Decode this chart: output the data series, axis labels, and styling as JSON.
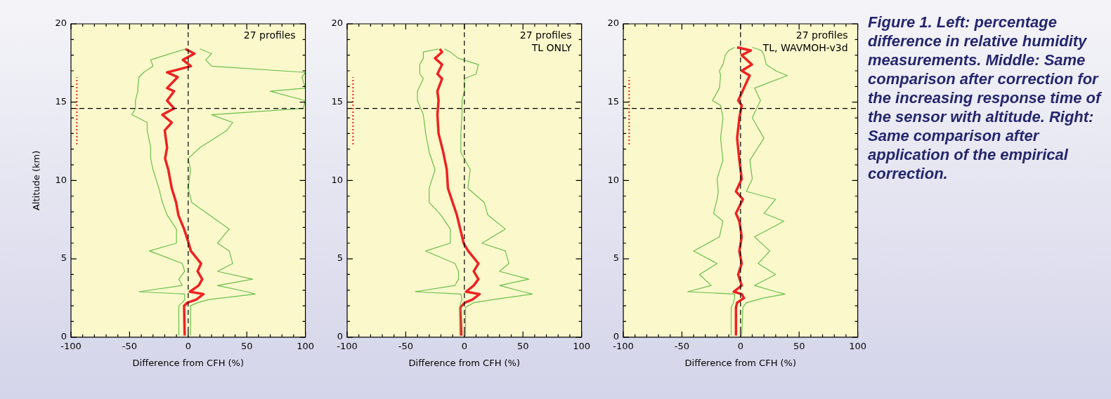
{
  "chart_data": [
    {
      "type": "line",
      "xlabel": "Difference from CFH (%)",
      "ylabel": "Altitude (km)",
      "xlim": [
        -100,
        100
      ],
      "xticks": [
        -100,
        -50,
        0,
        50,
        100
      ],
      "ylim": [
        0,
        20
      ],
      "yticks": [
        0,
        5,
        10,
        15,
        20
      ],
      "grid": false,
      "legend": false,
      "marker": "none",
      "annotations": [
        "27 profiles"
      ],
      "ref_lines": [
        {
          "axis": "x",
          "value": 0,
          "line_style": "dashed",
          "color": "#000000"
        },
        {
          "axis": "y",
          "value": 14.6,
          "line_style": "dashed",
          "color": "#000000"
        }
      ],
      "series": [
        {
          "color": "#6abf4b",
          "x": [
            -8,
            -8,
            -5,
            -3,
            -3,
            -42,
            -5,
            -8,
            -3,
            -5,
            -33,
            -10,
            -10,
            -18,
            -22,
            -25,
            -30,
            -32,
            -32,
            -35,
            -35,
            -48,
            -45,
            -45,
            -43,
            -43,
            -42,
            -38,
            -30,
            -32,
            -15,
            -2
          ],
          "values": [
            0.1,
            2.0,
            2.2,
            2.4,
            2.75,
            2.9,
            3.3,
            3.7,
            4.2,
            4.7,
            5.5,
            6.0,
            6.9,
            7.8,
            8.6,
            9.5,
            10.7,
            11.4,
            12.1,
            13.2,
            13.7,
            14.2,
            14.6,
            15.1,
            15.7,
            15.9,
            16.6,
            16.9,
            17.3,
            17.7,
            18.1,
            18.4
          ]
        },
        {
          "color": "#6abf4b",
          "x": [
            2,
            2,
            8,
            18,
            57,
            50,
            25,
            55,
            25,
            38,
            35,
            25,
            35,
            18,
            3,
            0,
            2,
            0,
            10,
            33,
            38,
            20,
            98,
            100,
            70,
            100,
            97,
            100,
            20,
            15,
            20,
            10
          ],
          "values": [
            0.1,
            2.0,
            2.2,
            2.4,
            2.75,
            2.9,
            3.3,
            3.7,
            4.2,
            4.7,
            5.5,
            6.0,
            6.9,
            7.8,
            8.6,
            9.5,
            10.7,
            11.4,
            12.1,
            13.2,
            13.7,
            14.2,
            14.6,
            15.1,
            15.7,
            15.9,
            16.6,
            16.9,
            17.3,
            17.7,
            18.1,
            18.4
          ]
        },
        {
          "color": "#ee2222",
          "x": [
            -3,
            -3.5,
            -0.6,
            7,
            13,
            1.4,
            9,
            12,
            8,
            11,
            2.3,
            0.4,
            -3.5,
            -8.4,
            -10.3,
            -14,
            -17,
            -19.7,
            -18,
            -20,
            -14,
            -22,
            -12,
            -18,
            -12,
            -18,
            -9,
            -18,
            2.3,
            -4.5,
            5.3,
            -2.5
          ],
          "values": [
            0.1,
            2.0,
            2.2,
            2.4,
            2.75,
            2.9,
            3.3,
            3.7,
            4.2,
            4.7,
            5.5,
            6.0,
            6.9,
            7.8,
            8.6,
            9.5,
            10.7,
            11.4,
            12.1,
            13.2,
            13.7,
            14.2,
            14.6,
            15.1,
            15.7,
            15.9,
            16.6,
            16.9,
            17.3,
            17.7,
            18.1,
            18.4
          ]
        },
        {
          "color": "#ee2222",
          "line_style": "dotted",
          "x": [
            -95,
            -95
          ],
          "values": [
            12.3,
            16.6
          ]
        }
      ]
    },
    {
      "type": "line",
      "xlabel": "Difference from CFH (%)",
      "xlim": [
        -100,
        100
      ],
      "xticks": [
        -100,
        -50,
        0,
        50,
        100
      ],
      "ylim": [
        0,
        20
      ],
      "yticks": [
        0,
        5,
        10,
        15,
        20
      ],
      "grid": false,
      "legend": false,
      "marker": "none",
      "annotations": [
        "27 profiles",
        "TL ONLY"
      ],
      "ref_lines": [
        {
          "axis": "x",
          "value": 0,
          "line_style": "dashed",
          "color": "#000000"
        },
        {
          "axis": "y",
          "value": 14.6,
          "line_style": "dashed",
          "color": "#000000"
        }
      ],
      "series": [
        {
          "color": "#6abf4b",
          "x": [
            -4,
            -4,
            -3,
            -2,
            -3,
            -42,
            -8,
            -5,
            -5,
            -8,
            -33,
            -12,
            -12,
            -20,
            -30,
            -30,
            -25,
            -30,
            -33,
            -35,
            -40,
            -40,
            -35,
            -38,
            -38,
            -35,
            -35,
            -22
          ],
          "values": [
            0.1,
            1.9,
            2.2,
            2.4,
            2.75,
            2.9,
            3.3,
            3.7,
            4.2,
            4.7,
            5.5,
            6.0,
            6.9,
            7.8,
            8.6,
            9.5,
            10.7,
            11.8,
            13.0,
            14.2,
            15.1,
            15.7,
            16.5,
            16.8,
            17.4,
            17.8,
            18.2,
            18.4
          ]
        },
        {
          "color": "#6abf4b",
          "x": [
            1,
            1,
            8,
            25,
            58,
            50,
            30,
            55,
            30,
            38,
            35,
            15,
            35,
            20,
            17,
            3,
            5,
            -3,
            -3,
            -2,
            -2,
            0,
            0,
            10,
            12,
            -5,
            -12,
            -17
          ],
          "values": [
            0.1,
            1.9,
            2.2,
            2.4,
            2.75,
            2.9,
            3.3,
            3.7,
            4.2,
            4.7,
            5.5,
            6.0,
            6.9,
            7.8,
            8.6,
            9.5,
            10.7,
            11.8,
            13.0,
            14.2,
            15.1,
            15.7,
            16.5,
            16.8,
            17.4,
            17.8,
            18.2,
            18.4
          ]
        },
        {
          "color": "#ee2222",
          "x": [
            -2.5,
            -3.5,
            0.4,
            7,
            13,
            1.4,
            8,
            12,
            8,
            12,
            3.3,
            -0.6,
            -3.5,
            -6.4,
            -10,
            -14,
            -15,
            -18,
            -22,
            -23,
            -22,
            -23,
            -19,
            -23,
            -19,
            -25,
            -19,
            -21
          ],
          "values": [
            0.1,
            1.9,
            2.2,
            2.4,
            2.75,
            2.9,
            3.3,
            3.7,
            4.2,
            4.7,
            5.5,
            6.0,
            6.9,
            7.8,
            8.6,
            9.5,
            10.7,
            11.8,
            13.0,
            14.2,
            15.1,
            15.7,
            16.5,
            16.8,
            17.4,
            17.8,
            18.2,
            18.4
          ]
        },
        {
          "color": "#ee2222",
          "line_style": "dotted",
          "x": [
            -95,
            -95
          ],
          "values": [
            12.3,
            16.6
          ]
        }
      ]
    },
    {
      "type": "line",
      "xlabel": "Difference from CFH (%)",
      "xlim": [
        -100,
        100
      ],
      "xticks": [
        -100,
        -50,
        0,
        50,
        100
      ],
      "ylim": [
        0,
        20
      ],
      "yticks": [
        0,
        5,
        10,
        15,
        20
      ],
      "grid": false,
      "legend": false,
      "marker": "none",
      "annotations": [
        "27 profiles",
        "TL, WAVMOH-v3d"
      ],
      "ref_lines": [
        {
          "axis": "x",
          "value": 0,
          "line_style": "dashed",
          "color": "#000000"
        },
        {
          "axis": "y",
          "value": 14.6,
          "line_style": "dashed",
          "color": "#000000"
        }
      ],
      "series": [
        {
          "color": "#6abf4b",
          "x": [
            -8,
            -8,
            -6,
            -5,
            -5,
            -45,
            -25,
            -35,
            -20,
            -40,
            -18,
            -15,
            -23,
            -20,
            -19,
            -20,
            -15,
            -17,
            -15,
            -17,
            -24,
            -18,
            -17,
            -18,
            -15,
            -13,
            -10,
            -5
          ],
          "values": [
            0.1,
            1.9,
            2.2,
            2.5,
            2.75,
            2.9,
            3.3,
            4.0,
            4.7,
            5.5,
            6.4,
            7.4,
            7.9,
            8.8,
            9.3,
            10.1,
            11.3,
            12.7,
            14.0,
            14.8,
            15.1,
            15.9,
            16.7,
            17.0,
            17.4,
            18.0,
            18.3,
            18.5
          ]
        },
        {
          "color": "#6abf4b",
          "x": [
            1,
            2,
            5,
            20,
            38,
            30,
            12,
            30,
            15,
            25,
            12,
            37,
            20,
            30,
            5,
            10,
            8,
            20,
            10,
            15,
            17,
            12,
            40,
            30,
            22,
            20,
            18,
            10
          ],
          "values": [
            0.1,
            1.9,
            2.2,
            2.5,
            2.75,
            2.9,
            3.3,
            4.0,
            4.7,
            5.5,
            6.4,
            7.4,
            7.9,
            8.8,
            9.3,
            10.1,
            11.3,
            12.7,
            14.0,
            14.8,
            15.1,
            15.9,
            16.7,
            17.0,
            17.4,
            18.0,
            18.3,
            18.5
          ]
        },
        {
          "color": "#ee2222",
          "x": [
            -3.9,
            -3.9,
            -2.9,
            2.9,
            1,
            -5.8,
            1,
            -2,
            1,
            -1,
            1,
            -1,
            -3.9,
            2,
            -3.9,
            1,
            -1,
            -2.9,
            -1,
            1,
            -2,
            2.9,
            7.8,
            1,
            9.7,
            1,
            8.8,
            -2.9
          ],
          "values": [
            0.1,
            1.9,
            2.2,
            2.5,
            2.75,
            2.9,
            3.3,
            4.0,
            4.7,
            5.5,
            6.4,
            7.4,
            7.9,
            8.8,
            9.3,
            10.1,
            11.3,
            12.7,
            14.0,
            14.8,
            15.1,
            15.9,
            16.7,
            17.0,
            17.4,
            18.0,
            18.3,
            18.5
          ]
        },
        {
          "color": "#ee2222",
          "line_style": "dotted",
          "x": [
            -95,
            -95
          ],
          "values": [
            12.3,
            16.6
          ]
        }
      ]
    },
    {
      "type": "other",
      "annotations": [
        "Figure 1. Left: percentage difference in relative humidity measurements. Middle: Same comparison after correction for the increasing response time of the sensor with altitude. Right: Same comparison after application of the empirical correction."
      ]
    }
  ]
}
